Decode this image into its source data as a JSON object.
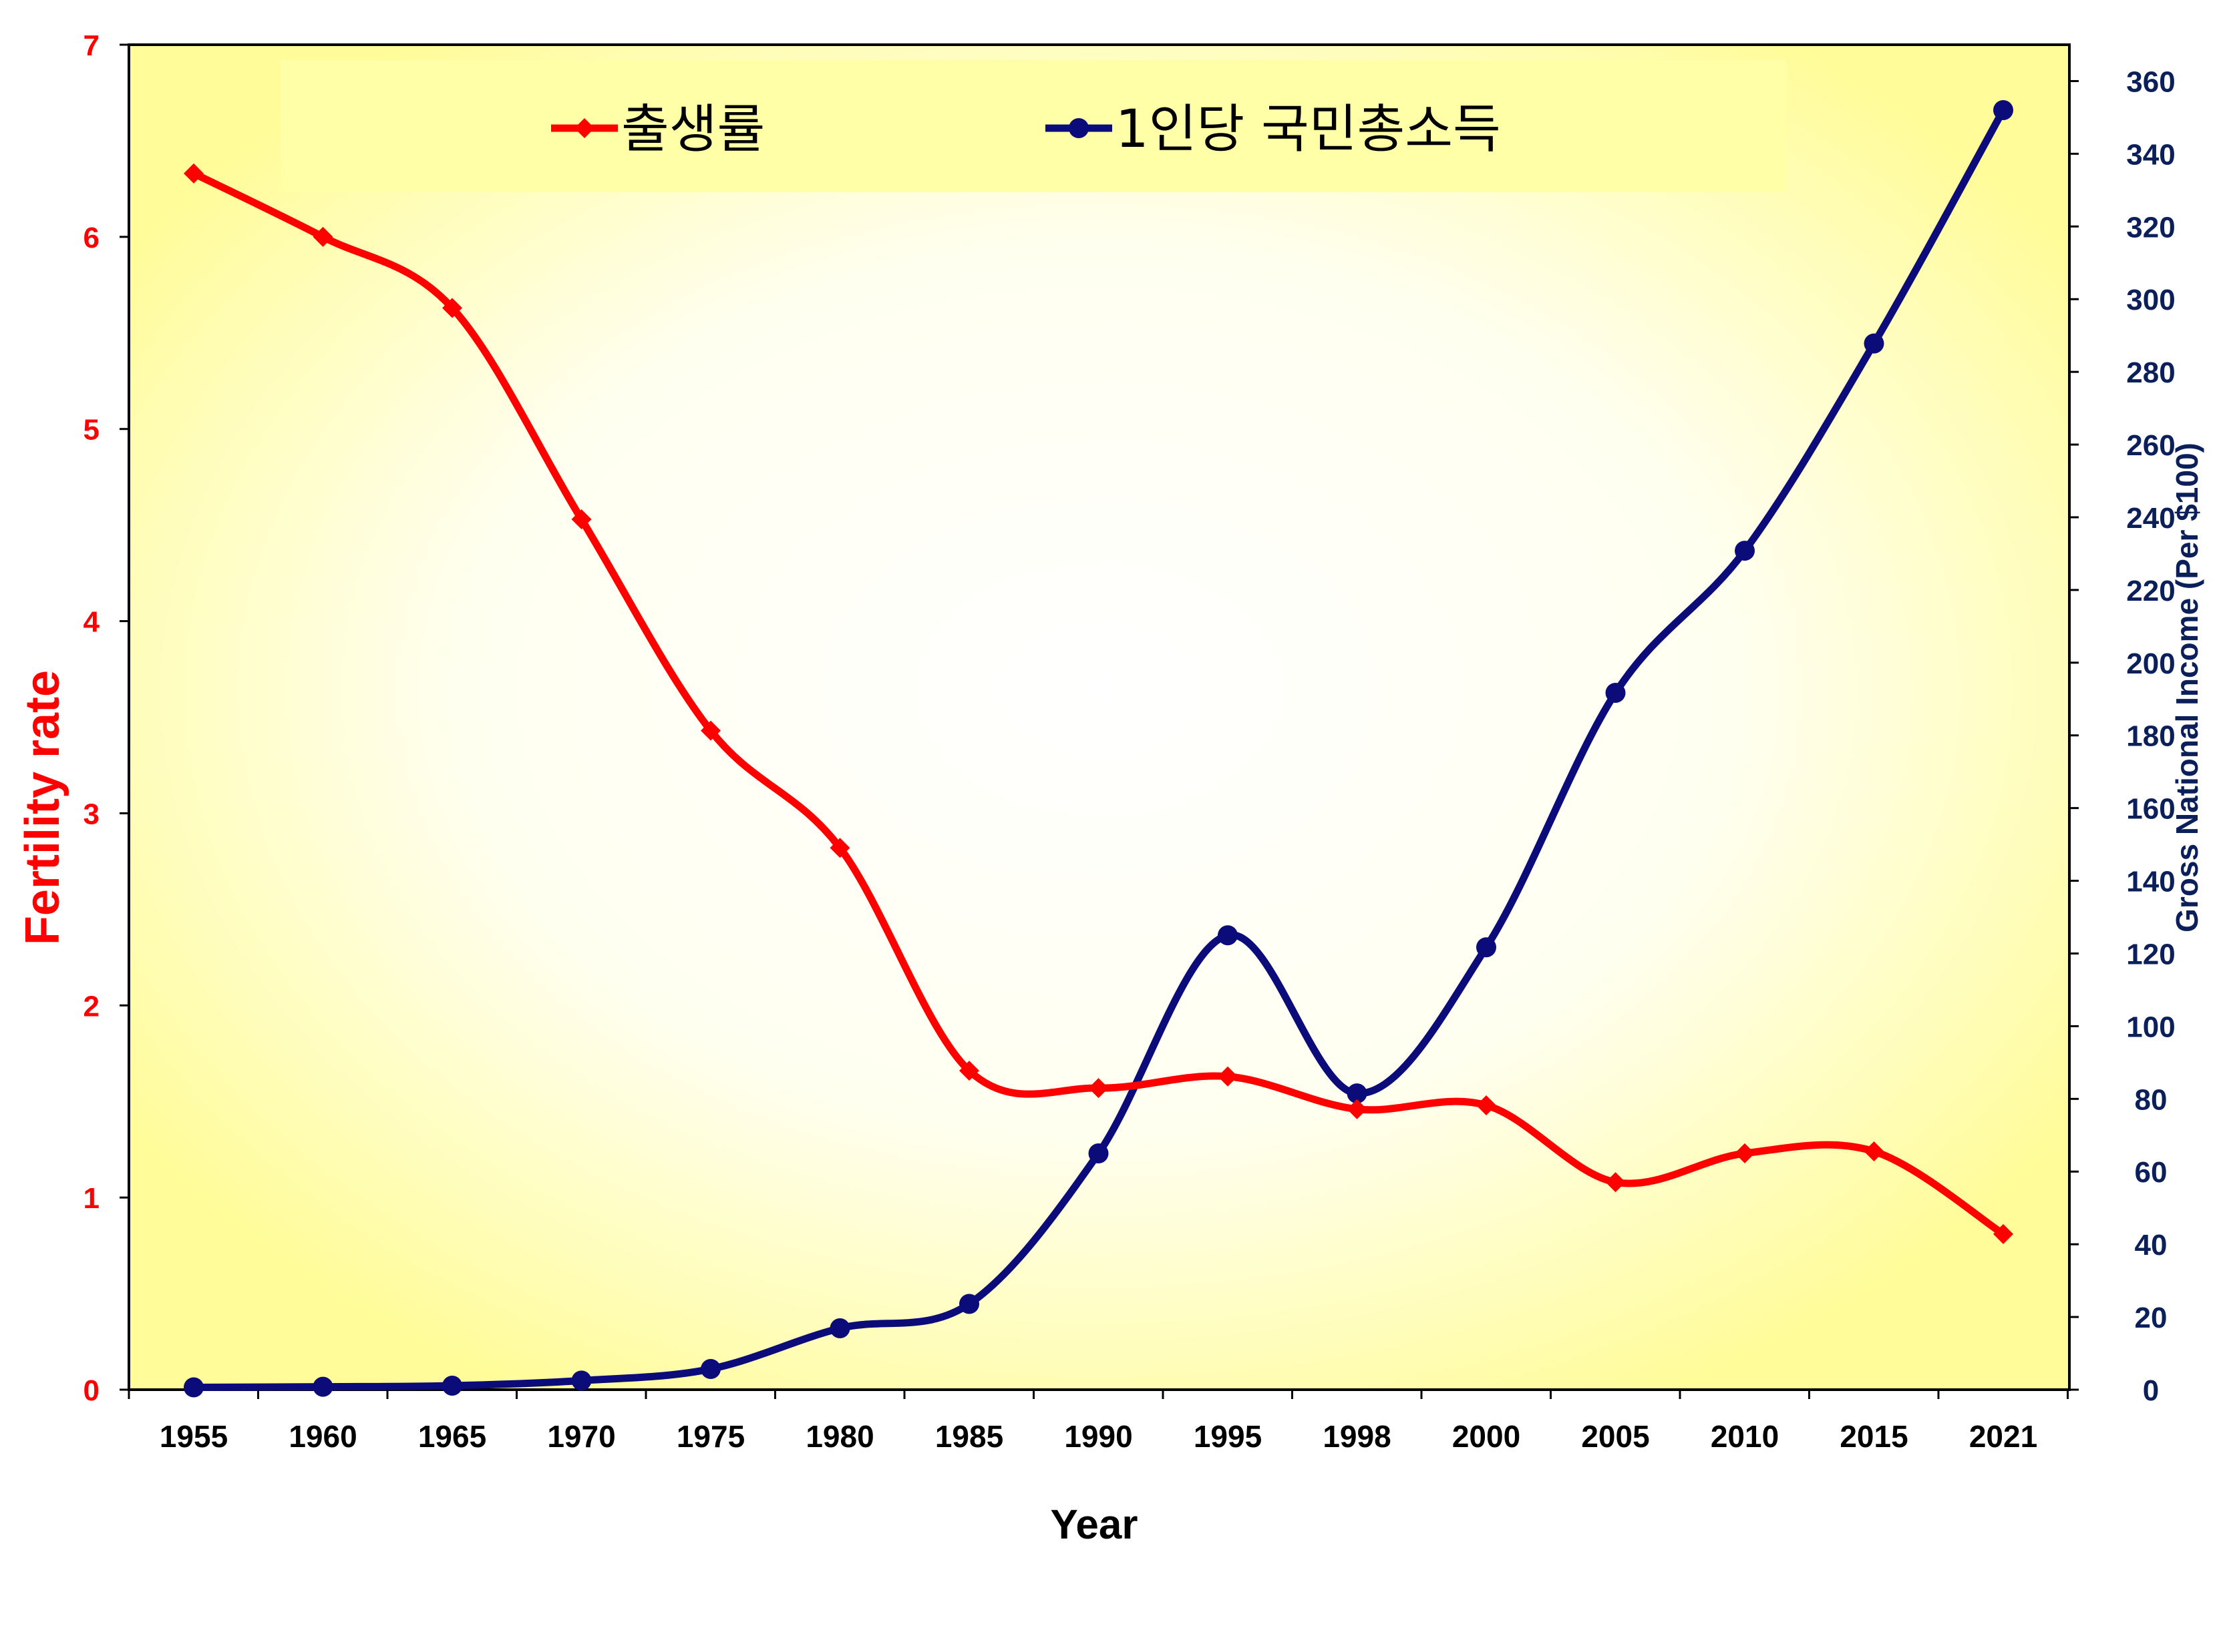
{
  "chart_data": {
    "type": "line",
    "categories": [
      "1955",
      "1960",
      "1965",
      "1970",
      "1975",
      "1980",
      "1985",
      "1990",
      "1995",
      "1998",
      "2000",
      "2005",
      "2010",
      "2015",
      "2021"
    ],
    "series": [
      {
        "name": "출생률",
        "axis": "left",
        "color": "#ff0000",
        "marker": "diamond",
        "values": [
          6.33,
          6.0,
          5.63,
          4.53,
          3.43,
          2.82,
          1.66,
          1.57,
          1.63,
          1.46,
          1.48,
          1.08,
          1.23,
          1.24,
          0.81
        ]
      },
      {
        "name": "1인당 국민총소득",
        "axis": "right",
        "color": "#0b0b7a",
        "marker": "circle",
        "values": [
          0.65,
          0.8,
          1.1,
          2.5,
          5.7,
          16.9,
          23.6,
          65.0,
          125.0,
          81.5,
          121.7,
          191.7,
          230.8,
          287.8,
          352.0
        ]
      }
    ],
    "xlabel": "Year",
    "ylabel_left": "Fertility rate",
    "ylabel_right": "Gross National Income (Per $100)",
    "ylim_left": [
      0,
      7
    ],
    "ylim_right": [
      0,
      370
    ],
    "yticks_left": [
      0,
      1,
      2,
      3,
      4,
      5,
      6,
      7
    ],
    "yticks_right": [
      0,
      20,
      40,
      60,
      80,
      100,
      120,
      140,
      160,
      180,
      200,
      220,
      240,
      260,
      280,
      300,
      320,
      340,
      360
    ],
    "legend_position": "top-center",
    "grid": false,
    "plot_background": "#ffffc0"
  }
}
